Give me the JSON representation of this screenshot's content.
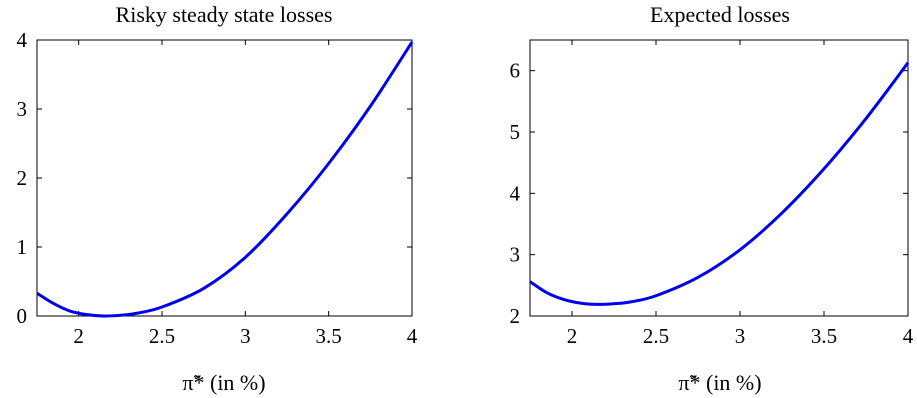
{
  "chart_data": [
    {
      "type": "line",
      "title": "Risky steady state losses",
      "xlabel": "π̃* (in %)",
      "ylabel": "",
      "xlim": [
        1.75,
        4
      ],
      "ylim": [
        0,
        4
      ],
      "xticks": [
        2,
        2.5,
        3,
        3.5,
        4
      ],
      "xtick_labels": [
        "2",
        "2.5",
        "3",
        "3.5",
        "4"
      ],
      "yticks": [
        0,
        1,
        2,
        3,
        4
      ],
      "ytick_labels": [
        "0",
        "1",
        "2",
        "3",
        "4"
      ],
      "grid": false,
      "line_color": "#0000ee",
      "series": [
        {
          "x": [
            1.75,
            1.85,
            1.95,
            2.05,
            2.15,
            2.25,
            2.35,
            2.5,
            2.75,
            3.0,
            3.25,
            3.5,
            3.75,
            4.0
          ],
          "y": [
            0.33,
            0.18,
            0.07,
            0.02,
            0.0,
            0.01,
            0.04,
            0.13,
            0.4,
            0.85,
            1.48,
            2.21,
            3.04,
            3.97
          ]
        }
      ]
    },
    {
      "type": "line",
      "title": "Expected losses",
      "xlabel": "π̃* (in %)",
      "ylabel": "",
      "xlim": [
        1.75,
        4
      ],
      "ylim": [
        2,
        6.5
      ],
      "xticks": [
        2,
        2.5,
        3,
        3.5,
        4
      ],
      "xtick_labels": [
        "2",
        "2.5",
        "3",
        "3.5",
        "4"
      ],
      "yticks": [
        2,
        3,
        4,
        5,
        6
      ],
      "ytick_labels": [
        "2",
        "3",
        "4",
        "5",
        "6"
      ],
      "grid": false,
      "line_color": "#0000ee",
      "series": [
        {
          "x": [
            1.75,
            1.85,
            1.95,
            2.05,
            2.15,
            2.25,
            2.35,
            2.5,
            2.75,
            3.0,
            3.25,
            3.5,
            3.75,
            4.0
          ],
          "y": [
            2.56,
            2.38,
            2.27,
            2.21,
            2.19,
            2.2,
            2.23,
            2.33,
            2.63,
            3.08,
            3.68,
            4.4,
            5.22,
            6.13
          ]
        }
      ]
    }
  ]
}
